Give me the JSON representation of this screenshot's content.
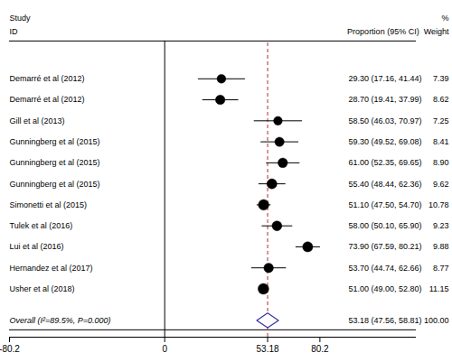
{
  "chart_data": {
    "type": "forest",
    "headers": [
      "Study",
      "ID",
      "%",
      "Proportion (95% CI)  Weight"
    ],
    "categories": [
      "Demarré et al (2012)",
      "Demarré et al (2012)",
      "Gill et al (2013)",
      "Gunningberg et al (2015)",
      "Gunningberg et al (2015)",
      "Gunningberg et al (2015)",
      "Simonetti et al (2015)",
      "Tulek et al (2016)",
      "Lui et al (2016)",
      "Hernandez et al (2017)",
      "Usher et al (2018)"
    ],
    "values": [
      29.3,
      28.7,
      58.5,
      59.3,
      61.0,
      55.4,
      51.1,
      58.0,
      73.9,
      53.7,
      51.0
    ],
    "ci_lower": [
      17.16,
      19.41,
      46.03,
      49.52,
      52.35,
      48.44,
      47.5,
      50.1,
      67.59,
      44.74,
      49.0
    ],
    "ci_upper": [
      41.44,
      37.99,
      70.97,
      69.08,
      69.65,
      62.36,
      54.7,
      65.9,
      80.21,
      62.66,
      52.8
    ],
    "weights": [
      7.39,
      8.62,
      7.25,
      8.41,
      8.9,
      9.62,
      10.78,
      9.23,
      9.88,
      8.77,
      11.15
    ],
    "value_labels": [
      "29.30 (17.16, 41.44)",
      "28.70 (19.41, 37.99)",
      "58.50 (46.03, 70.97)",
      "59.30 (49.52, 69.08)",
      "61.00 (52.35, 69.65)",
      "55.40 (48.44, 62.36)",
      "51.10 (47.50, 54.70)",
      "58.00 (50.10, 65.90)",
      "73.90 (67.59, 80.21)",
      "53.70 (44.74, 62.66)",
      "51.00 (49.00, 52.80)"
    ],
    "weight_labels": [
      "7.39",
      "8.62",
      "7.25",
      "8.41",
      "8.90",
      "9.62",
      "10.78",
      "9.23",
      "9.88",
      "8.77",
      "11.15"
    ],
    "color": "#000000",
    "overall": {
      "label": "Overall (I²=89.5%, P=0.000)",
      "value": 53.18,
      "ci_lower": 47.56,
      "ci_upper": 58.81,
      "weight": 100.0,
      "value_label": "53.18 (47.56, 58.81)",
      "weight_label": "100.00",
      "color": "#3333aa"
    },
    "reference_lines": [
      {
        "value": 0,
        "color": "#000000",
        "line_style": "solid"
      },
      {
        "value": 53.18,
        "color": "#b03030",
        "line_style": "dashed"
      }
    ],
    "xlim": [
      -80.2,
      130
    ],
    "xticks": [
      -80.2,
      0,
      53.18,
      80.2
    ],
    "tick_labels": "x"
  }
}
